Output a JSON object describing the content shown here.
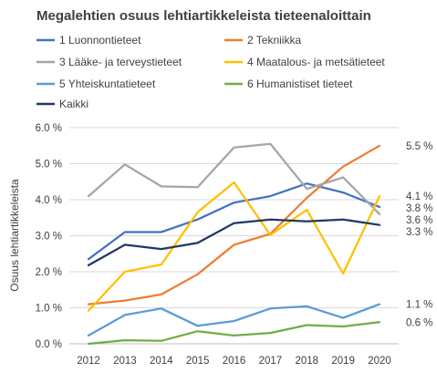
{
  "chart_data": {
    "type": "line",
    "title": "Megalehtien osuus lehtiartikkeleista tieteenaloittain",
    "ylabel": "Osuus lehtiartikkeleista",
    "xlabel": "",
    "ylim": [
      0,
      6
    ],
    "y_ticks": [
      "0.0 %",
      "1.0 %",
      "2.0 %",
      "3.0 %",
      "4.0 %",
      "5.0 %",
      "6.0 %"
    ],
    "grid": "horizontal",
    "legend_position": "top",
    "categories": [
      "2012",
      "2013",
      "2014",
      "2015",
      "2016",
      "2017",
      "2018",
      "2019",
      "2020"
    ],
    "series": [
      {
        "name": "1 Luonnontieteet",
        "color": "#4472C4",
        "values": [
          2.35,
          3.1,
          3.1,
          3.45,
          3.92,
          4.1,
          4.45,
          4.2,
          3.8
        ]
      },
      {
        "name": "2 Tekniikka",
        "color": "#ED7D31",
        "values": [
          1.1,
          1.2,
          1.37,
          1.93,
          2.75,
          3.05,
          4.05,
          4.92,
          5.5
        ]
      },
      {
        "name": "3 Lääke- ja terveystieteet",
        "color": "#A5A5A5",
        "values": [
          4.1,
          4.98,
          4.37,
          4.35,
          5.45,
          5.55,
          4.3,
          4.62,
          3.6
        ]
      },
      {
        "name": "4 Maatalous- ja metsätieteet",
        "color": "#FFC000",
        "values": [
          0.92,
          2.0,
          2.2,
          3.65,
          4.48,
          3.02,
          3.72,
          1.95,
          4.1
        ]
      },
      {
        "name": "5 Yhteiskuntatieteet",
        "color": "#5B9BD5",
        "values": [
          0.23,
          0.8,
          0.98,
          0.5,
          0.63,
          0.98,
          1.04,
          0.72,
          1.1
        ]
      },
      {
        "name": "6 Humanistiset tieteet",
        "color": "#70AD47",
        "values": [
          0.0,
          0.1,
          0.08,
          0.35,
          0.23,
          0.3,
          0.52,
          0.48,
          0.6
        ]
      },
      {
        "name": "Kaikki",
        "color": "#203864",
        "values": [
          2.18,
          2.75,
          2.63,
          2.8,
          3.35,
          3.45,
          3.4,
          3.45,
          3.3
        ]
      }
    ],
    "end_labels": [
      {
        "text": "5.5 %",
        "value": 5.5
      },
      {
        "text": "4.1 %",
        "value": 4.1
      },
      {
        "text": "3.8 %",
        "value": 3.8
      },
      {
        "text": "3.6 %",
        "value": 3.6
      },
      {
        "text": "3.3 %",
        "value": 3.3
      },
      {
        "text": "1.1 %",
        "value": 1.1
      },
      {
        "text": "0.6 %",
        "value": 0.6
      }
    ]
  }
}
